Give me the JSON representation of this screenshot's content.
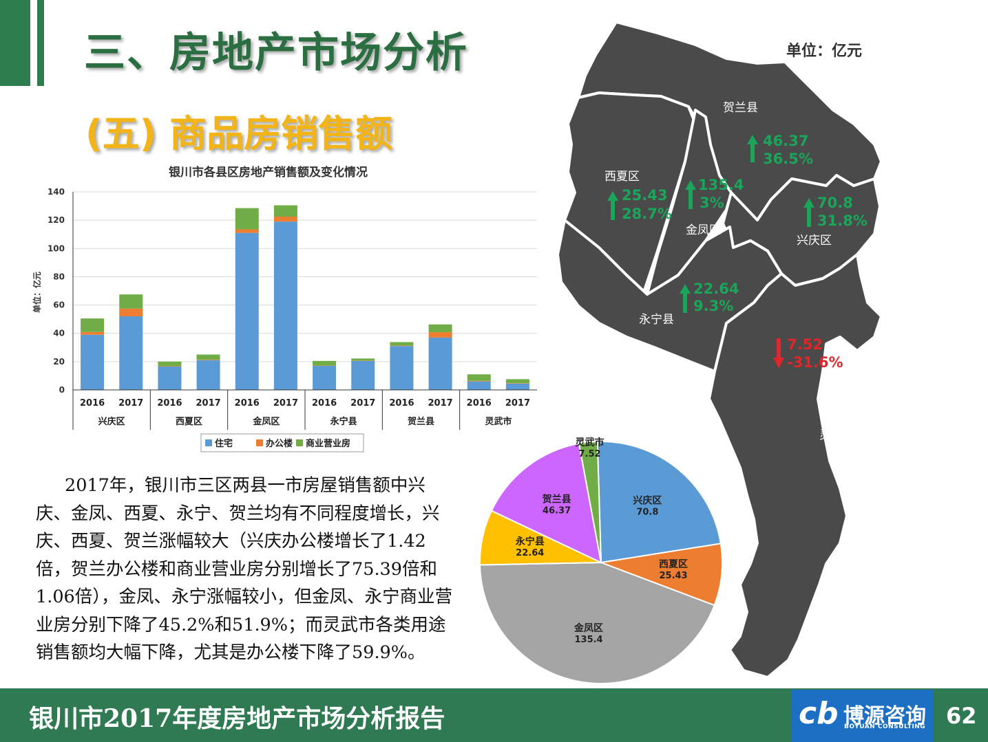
{
  "header": {
    "title": "三、房地产市场分析",
    "subtitle": "(五) 商品房销售额",
    "unit": "单位：亿元"
  },
  "body_text": "2017年，银川市三区两县一市房屋销售额中兴庆、金凤、西夏、永宁、贺兰均有不同程度增长，兴庆、西夏、贺兰涨幅较大（兴庆办公楼增长了1.42倍，贺兰办公楼和商业营业房分别增长了75.39倍和1.06倍），金凤、永宁涨幅较小，但金凤、永宁商业营业房分别下降了45.2%和51.9%；而灵武市各类用途销售额均大幅下降，尤其是办公楼下降了59.9%。",
  "footer": {
    "report_title": "银川市2017年度房地产市场分析报告",
    "logo_mark": "cb",
    "logo_cn": "博源咨询",
    "logo_en": "BOYUAN CONSULTING",
    "page_number": "62"
  },
  "colors": {
    "green": "#2e7d4f",
    "gold": "#f2b417",
    "map_fill": "#4a4a4a",
    "up": "#1aa55a",
    "down": "#e0262b",
    "residential": "#5b9bd5",
    "office": "#ed7d31",
    "commercial": "#70ad47"
  },
  "chart_data": [
    {
      "type": "bar",
      "stacked": true,
      "title": "银川市各县区房地产销售额及变化情况",
      "ylabel": "单位：亿元",
      "ylim": [
        0,
        140
      ],
      "yticks": [
        "0",
        "20",
        "40",
        "60",
        "80",
        "100",
        "120",
        "140"
      ],
      "groups": [
        "兴庆区",
        "西夏区",
        "金凤区",
        "永宁县",
        "贺兰县",
        "灵武市"
      ],
      "years": [
        "2016",
        "2017"
      ],
      "series": [
        {
          "name": "住宅",
          "values": [
            39,
            52,
            16.5,
            21,
            111,
            119,
            17,
            20.5,
            31,
            37,
            6,
            4.5
          ]
        },
        {
          "name": "办公楼",
          "values": [
            2,
            5.5,
            0.3,
            0.3,
            2.5,
            3.5,
            0.2,
            0.2,
            0.3,
            3.8,
            0.4,
            0.3
          ]
        },
        {
          "name": "商业营业房",
          "values": [
            9.5,
            10,
            3.2,
            3.7,
            15,
            8,
            3.3,
            1.5,
            2.5,
            5.5,
            4.6,
            2.8
          ]
        }
      ],
      "legend_position": "bottom"
    },
    {
      "type": "pie",
      "slices": [
        {
          "name": "兴庆区",
          "value": 70.8,
          "color": "#5b9bd5"
        },
        {
          "name": "西夏区",
          "value": 25.43,
          "color": "#ed7d31"
        },
        {
          "name": "金凤区",
          "value": 135.4,
          "color": "#a5a5a5"
        },
        {
          "name": "永宁县",
          "value": 22.64,
          "color": "#ffc000"
        },
        {
          "name": "贺兰县",
          "value": 46.37,
          "color": "#cc66ff"
        },
        {
          "name": "灵武市",
          "value": 7.52,
          "color": "#70ad47"
        }
      ],
      "labels": [
        {
          "name": "兴庆区",
          "value": "70.8"
        },
        {
          "name": "西夏区",
          "value": "25.43"
        },
        {
          "name": "金凤区",
          "value": "135.4"
        },
        {
          "name": "永宁县",
          "value": "22.64"
        },
        {
          "name": "贺兰县",
          "value": "46.37"
        },
        {
          "name": "灵武市",
          "value": "7.52"
        }
      ]
    }
  ],
  "map": {
    "regions": [
      {
        "name": "贺兰县",
        "value": "46.37",
        "change": "36.5%",
        "direction": "up"
      },
      {
        "name": "西夏区",
        "value": "25.43",
        "change": "28.7%",
        "direction": "up"
      },
      {
        "name": "金凤区",
        "value": "135.4",
        "change": "3%",
        "direction": "up"
      },
      {
        "name": "兴庆区",
        "value": "70.8",
        "change": "31.8%",
        "direction": "up"
      },
      {
        "name": "永宁县",
        "value": "22.64",
        "change": "9.3%",
        "direction": "up"
      },
      {
        "name": "灵武市",
        "value": "7.52",
        "change": "-31.6%",
        "direction": "down"
      }
    ]
  }
}
